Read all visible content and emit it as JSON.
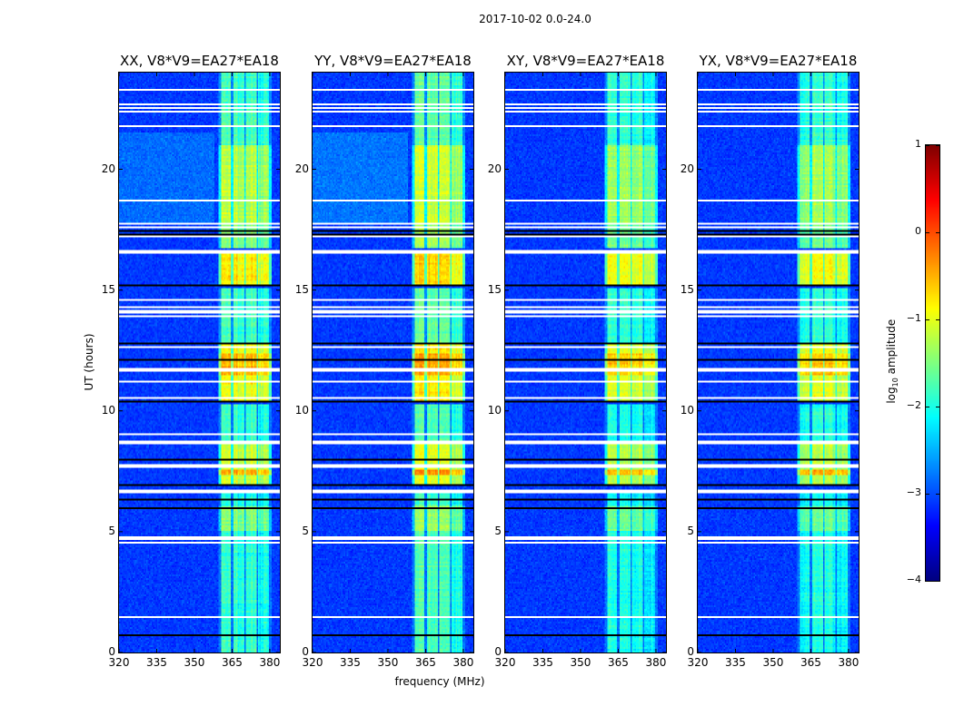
{
  "figure": {
    "suptitle": "2017-10-02 0.0-24.0",
    "ylabel": "UT (hours)",
    "xlabel": "frequency (MHz)",
    "colorbar_label_prefix": "log",
    "colorbar_label_sub": "10",
    "colorbar_label_suffix": " amplitude"
  },
  "chart_data": {
    "type": "heatmap",
    "title": "2017-10-02 0.0-24.0",
    "xlabel": "frequency (MHz)",
    "ylabel": "UT (hours)",
    "xlim": [
      320,
      384
    ],
    "ylim": [
      0,
      24
    ],
    "xticks": [
      320,
      335,
      350,
      365,
      380
    ],
    "yticks": [
      0,
      5,
      10,
      15,
      20
    ],
    "colormap": "jet",
    "clim": [
      -4,
      1
    ],
    "colorbar_ticks": [
      1,
      0,
      -1,
      -2,
      -3,
      -4
    ],
    "colorbar_tick_labels": [
      "1",
      "0",
      "−1",
      "−2",
      "−3",
      "−4"
    ],
    "panels": [
      {
        "title": "XX, V8*V9=EA27*EA18",
        "amplitude_offset": 0.0,
        "background_boost_18_22h": 0.25
      },
      {
        "title": "YY, V8*V9=EA27*EA18",
        "amplitude_offset": 0.15,
        "background_boost_18_22h": 0.3
      },
      {
        "title": "XY, V8*V9=EA27*EA18",
        "amplitude_offset": -0.12,
        "background_boost_18_22h": 0.0
      },
      {
        "title": "YX, V8*V9=EA27*EA18",
        "amplitude_offset": -0.08,
        "background_boost_18_22h": 0.0
      }
    ],
    "background_log_amplitude": -3.1,
    "rfi_channels_mhz": [
      [
        360.5,
        364.6
      ],
      [
        365.4,
        369.7
      ],
      [
        370.5,
        374.6
      ],
      [
        375.4,
        379.6
      ]
    ],
    "rfi_activity_hours": [
      {
        "start": 0.0,
        "end": 5.0,
        "value": -1.9
      },
      {
        "start": 5.0,
        "end": 6.1,
        "value": -1.5
      },
      {
        "start": 6.1,
        "end": 6.7,
        "value": -2.0
      },
      {
        "start": 6.9,
        "end": 8.6,
        "value": -1.15
      },
      {
        "start": 7.35,
        "end": 7.6,
        "value": -0.45
      },
      {
        "start": 8.6,
        "end": 10.3,
        "value": -1.9
      },
      {
        "start": 10.4,
        "end": 12.8,
        "value": -0.95
      },
      {
        "start": 11.5,
        "end": 12.4,
        "value": -0.55
      },
      {
        "start": 12.8,
        "end": 15.1,
        "value": -1.8
      },
      {
        "start": 15.2,
        "end": 16.6,
        "value": -0.85
      },
      {
        "start": 16.7,
        "end": 17.7,
        "value": -1.5
      },
      {
        "start": 17.8,
        "end": 21.0,
        "value": -1.25
      },
      {
        "start": 21.0,
        "end": 24.0,
        "value": -1.8
      }
    ],
    "flagged_hours": [
      [
        0.42,
        0.48
      ],
      [
        0.96,
        1.0
      ],
      [
        1.41,
        1.47
      ],
      [
        2.98,
        3.03
      ],
      [
        3.28,
        3.33
      ],
      [
        3.5,
        3.55
      ],
      [
        4.33,
        4.38
      ],
      [
        4.52,
        4.57
      ],
      [
        4.68,
        4.82
      ],
      [
        6.05,
        6.1
      ],
      [
        6.62,
        6.74
      ],
      [
        7.68,
        7.8
      ],
      [
        8.08,
        8.13
      ],
      [
        8.62,
        8.74
      ],
      [
        9.03,
        9.08
      ],
      [
        9.28,
        9.33
      ],
      [
        9.58,
        9.63
      ],
      [
        10.53,
        10.58
      ],
      [
        10.93,
        10.98
      ],
      [
        11.18,
        11.23
      ],
      [
        11.63,
        11.68
      ],
      [
        11.73,
        11.78
      ],
      [
        12.63,
        12.68
      ],
      [
        13.18,
        13.23
      ],
      [
        13.88,
        13.93
      ],
      [
        14.05,
        14.15
      ],
      [
        14.28,
        14.33
      ],
      [
        14.58,
        14.63
      ],
      [
        15.43,
        15.48
      ],
      [
        16.03,
        16.08
      ],
      [
        16.18,
        16.23
      ],
      [
        16.33,
        16.38
      ],
      [
        16.5,
        16.64
      ],
      [
        16.85,
        16.9
      ],
      [
        17.18,
        17.22
      ],
      [
        17.58,
        17.62
      ],
      [
        17.72,
        17.76
      ],
      [
        18.68,
        18.72
      ],
      [
        18.88,
        18.92
      ],
      [
        21.58,
        21.63
      ],
      [
        21.78,
        21.83
      ],
      [
        21.88,
        21.93
      ],
      [
        22.38,
        22.43
      ],
      [
        22.53,
        22.58
      ],
      [
        22.68,
        22.73
      ],
      [
        23.28,
        23.33
      ],
      [
        23.68,
        23.73
      ]
    ],
    "dropout_hours": [
      [
        0.7,
        0.75
      ],
      [
        1.03,
        1.08
      ],
      [
        2.83,
        2.88
      ],
      [
        5.94,
        5.99
      ],
      [
        6.32,
        6.37
      ],
      [
        6.92,
        6.97
      ],
      [
        7.26,
        7.31
      ],
      [
        7.98,
        8.03
      ],
      [
        8.83,
        8.88
      ],
      [
        10.18,
        10.23
      ],
      [
        10.38,
        10.43
      ],
      [
        12.08,
        12.13
      ],
      [
        12.78,
        12.83
      ],
      [
        15.18,
        15.23
      ],
      [
        17.08,
        17.13
      ],
      [
        17.28,
        17.33
      ],
      [
        17.43,
        17.48
      ],
      [
        22.18,
        22.23
      ]
    ]
  }
}
